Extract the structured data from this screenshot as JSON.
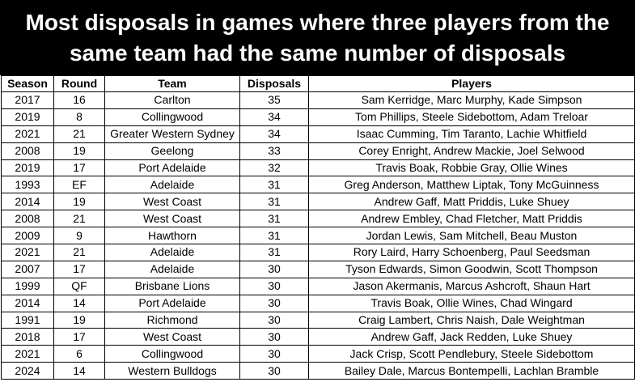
{
  "title": "Most disposals in games where three players from the same team had the same number of disposals",
  "columns": {
    "season": "Season",
    "round": "Round",
    "team": "Team",
    "disposals": "Disposals",
    "players": "Players"
  },
  "rows": [
    {
      "season": "2017",
      "round": "16",
      "team": "Carlton",
      "disposals": "35",
      "players": "Sam Kerridge, Marc Murphy, Kade Simpson"
    },
    {
      "season": "2019",
      "round": "8",
      "team": "Collingwood",
      "disposals": "34",
      "players": "Tom Phillips, Steele Sidebottom, Adam Treloar"
    },
    {
      "season": "2021",
      "round": "21",
      "team": "Greater Western Sydney",
      "disposals": "34",
      "players": "Isaac Cumming, Tim Taranto, Lachie Whitfield"
    },
    {
      "season": "2008",
      "round": "19",
      "team": "Geelong",
      "disposals": "33",
      "players": "Corey Enright, Andrew Mackie, Joel Selwood"
    },
    {
      "season": "2019",
      "round": "17",
      "team": "Port Adelaide",
      "disposals": "32",
      "players": "Travis Boak, Robbie Gray, Ollie Wines"
    },
    {
      "season": "1993",
      "round": "EF",
      "team": "Adelaide",
      "disposals": "31",
      "players": "Greg Anderson, Matthew Liptak, Tony McGuinness"
    },
    {
      "season": "2014",
      "round": "19",
      "team": "West Coast",
      "disposals": "31",
      "players": "Andrew Gaff, Matt Priddis, Luke Shuey"
    },
    {
      "season": "2008",
      "round": "21",
      "team": "West Coast",
      "disposals": "31",
      "players": "Andrew Embley, Chad Fletcher, Matt Priddis"
    },
    {
      "season": "2009",
      "round": "9",
      "team": "Hawthorn",
      "disposals": "31",
      "players": "Jordan Lewis, Sam Mitchell, Beau Muston"
    },
    {
      "season": "2021",
      "round": "21",
      "team": "Adelaide",
      "disposals": "31",
      "players": "Rory Laird, Harry Schoenberg, Paul Seedsman"
    },
    {
      "season": "2007",
      "round": "17",
      "team": "Adelaide",
      "disposals": "30",
      "players": "Tyson Edwards, Simon Goodwin, Scott Thompson"
    },
    {
      "season": "1999",
      "round": "QF",
      "team": "Brisbane Lions",
      "disposals": "30",
      "players": "Jason Akermanis, Marcus Ashcroft, Shaun Hart"
    },
    {
      "season": "2014",
      "round": "14",
      "team": "Port Adelaide",
      "disposals": "30",
      "players": "Travis Boak, Ollie Wines, Chad Wingard"
    },
    {
      "season": "1991",
      "round": "19",
      "team": "Richmond",
      "disposals": "30",
      "players": "Craig Lambert, Chris Naish, Dale Weightman"
    },
    {
      "season": "2018",
      "round": "17",
      "team": "West Coast",
      "disposals": "30",
      "players": "Andrew Gaff, Jack Redden, Luke Shuey"
    },
    {
      "season": "2021",
      "round": "6",
      "team": "Collingwood",
      "disposals": "30",
      "players": "Jack Crisp, Scott Pendlebury, Steele Sidebottom"
    },
    {
      "season": "2024",
      "round": "14",
      "team": "Western Bulldogs",
      "disposals": "30",
      "players": "Bailey Dale, Marcus Bontempelli, Lachlan Bramble"
    }
  ]
}
